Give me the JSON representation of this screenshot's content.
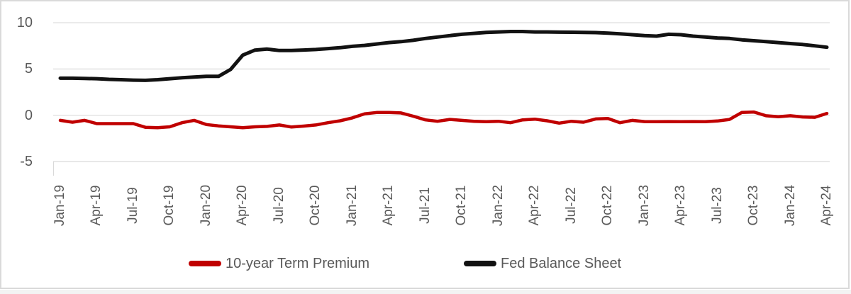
{
  "chart_data": {
    "type": "line",
    "title": "",
    "x_frequency": "monthly",
    "x_start": "Jan-19",
    "x_end": "Apr-24",
    "x_ticks_every_n_points": 3,
    "x_tick_labels": [
      "Jan-19",
      "Apr-19",
      "Jul-19",
      "Oct-19",
      "Jan-20",
      "Apr-20",
      "Jul-20",
      "Oct-20",
      "Jan-21",
      "Apr-21",
      "Jul-21",
      "Oct-21",
      "Jan-22",
      "Apr-22",
      "Jul-22",
      "Oct-22",
      "Jan-23",
      "Apr-23",
      "Jul-23",
      "Oct-23",
      "Jan-24",
      "Apr-24"
    ],
    "y_ticks": [
      10,
      5,
      0,
      -5
    ],
    "ylim": [
      -5,
      10
    ],
    "grid": "horizontal",
    "legend_position": "bottom",
    "series": [
      {
        "name": "10-year Term Premium",
        "color": "#C00000",
        "values": [
          -0.55,
          -0.75,
          -0.55,
          -0.9,
          -0.9,
          -0.9,
          -0.9,
          -1.3,
          -1.35,
          -1.25,
          -0.8,
          -0.55,
          -1.0,
          -1.15,
          -1.25,
          -1.35,
          -1.25,
          -1.2,
          -1.05,
          -1.27,
          -1.17,
          -1.05,
          -0.8,
          -0.6,
          -0.28,
          0.15,
          0.3,
          0.3,
          0.25,
          -0.1,
          -0.5,
          -0.65,
          -0.45,
          -0.55,
          -0.65,
          -0.7,
          -0.65,
          -0.8,
          -0.5,
          -0.42,
          -0.6,
          -0.85,
          -0.65,
          -0.75,
          -0.4,
          -0.35,
          -0.8,
          -0.55,
          -0.68,
          -0.7,
          -0.68,
          -0.7,
          -0.68,
          -0.7,
          -0.62,
          -0.45,
          0.3,
          0.35,
          -0.05,
          -0.15,
          -0.05,
          -0.18,
          -0.22,
          0.2
        ]
      },
      {
        "name": "Fed Balance Sheet",
        "color": "#121212",
        "values": [
          4.0,
          4.0,
          3.97,
          3.95,
          3.88,
          3.84,
          3.8,
          3.77,
          3.84,
          3.95,
          4.05,
          4.13,
          4.2,
          4.2,
          4.95,
          6.5,
          7.04,
          7.15,
          7.0,
          7.0,
          7.05,
          7.1,
          7.2,
          7.3,
          7.45,
          7.55,
          7.7,
          7.85,
          7.95,
          8.1,
          8.3,
          8.45,
          8.6,
          8.75,
          8.85,
          8.95,
          9.0,
          9.05,
          9.05,
          9.0,
          9.0,
          8.98,
          8.97,
          8.95,
          8.93,
          8.88,
          8.8,
          8.7,
          8.6,
          8.55,
          8.75,
          8.7,
          8.55,
          8.45,
          8.35,
          8.3,
          8.15,
          8.05,
          7.95,
          7.85,
          7.75,
          7.65,
          7.5,
          7.35
        ]
      }
    ]
  },
  "colors": {
    "gridline": "#D9D9D9",
    "axis_text": "#595959",
    "frame_border": "#DADADA"
  }
}
